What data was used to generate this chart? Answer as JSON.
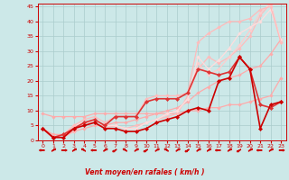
{
  "xlabel": "Vent moyen/en rafales ( km/h )",
  "xlim": [
    -0.5,
    23.5
  ],
  "ylim": [
    0,
    46
  ],
  "xticks": [
    0,
    1,
    2,
    3,
    4,
    5,
    6,
    7,
    8,
    9,
    10,
    11,
    12,
    13,
    14,
    15,
    16,
    17,
    18,
    19,
    20,
    21,
    22,
    23
  ],
  "yticks": [
    0,
    5,
    10,
    15,
    20,
    25,
    30,
    35,
    40,
    45
  ],
  "bg_color": "#cce8e8",
  "grid_color": "#aacccc",
  "series": [
    {
      "x": [
        0,
        1,
        2,
        3,
        4,
        5,
        6,
        7,
        8,
        9,
        10,
        11,
        12,
        13,
        14,
        15,
        16,
        17,
        18,
        19,
        20,
        21,
        22,
        23
      ],
      "y": [
        9,
        8,
        8,
        8,
        8,
        9,
        9,
        9,
        9,
        9,
        9,
        9,
        9,
        9,
        10,
        10,
        11,
        11,
        12,
        12,
        13,
        14,
        15,
        21
      ],
      "color": "#ffaaaa",
      "lw": 0.9,
      "marker": "D",
      "ms": 1.8
    },
    {
      "x": [
        0,
        1,
        2,
        3,
        4,
        5,
        6,
        7,
        8,
        9,
        10,
        11,
        12,
        13,
        14,
        15,
        16,
        17,
        18,
        19,
        20,
        21,
        22,
        23
      ],
      "y": [
        4,
        2,
        2,
        3,
        4,
        5,
        5,
        6,
        6,
        7,
        8,
        9,
        10,
        11,
        13,
        16,
        18,
        20,
        21,
        22,
        24,
        25,
        29,
        34
      ],
      "color": "#ffaaaa",
      "lw": 0.9,
      "marker": "D",
      "ms": 1.8
    },
    {
      "x": [
        0,
        1,
        2,
        3,
        4,
        5,
        6,
        7,
        8,
        9,
        10,
        11,
        12,
        13,
        14,
        15,
        16,
        17,
        18,
        19,
        20,
        21,
        22,
        23
      ],
      "y": [
        4,
        1,
        1,
        3,
        6,
        6,
        4,
        5,
        4,
        5,
        6,
        7,
        8,
        9,
        15,
        24,
        28,
        26,
        28,
        31,
        35,
        42,
        46,
        33
      ],
      "color": "#ffbbbb",
      "lw": 0.9,
      "marker": "D",
      "ms": 1.8
    },
    {
      "x": [
        0,
        1,
        2,
        3,
        4,
        5,
        6,
        7,
        8,
        9,
        10,
        11,
        12,
        13,
        14,
        15,
        16,
        17,
        18,
        19,
        20,
        21,
        22,
        23
      ],
      "y": [
        4,
        1,
        2,
        5,
        6,
        7,
        5,
        5,
        4,
        4,
        6,
        7,
        9,
        10,
        14,
        26,
        22,
        24,
        28,
        32,
        37,
        43,
        46,
        33
      ],
      "color": "#ffcccc",
      "lw": 0.9,
      "marker": "D",
      "ms": 1.8
    },
    {
      "x": [
        0,
        1,
        2,
        3,
        4,
        5,
        6,
        7,
        8,
        9,
        10,
        11,
        12,
        13,
        14,
        15,
        16,
        17,
        18,
        19,
        20,
        21,
        22,
        23
      ],
      "y": [
        4,
        1,
        2,
        5,
        6,
        7,
        5,
        5,
        4,
        4,
        6,
        7,
        9,
        10,
        14,
        28,
        24,
        27,
        31,
        36,
        38,
        40,
        44,
        34
      ],
      "color": "#ffdddd",
      "lw": 0.9,
      "marker": "D",
      "ms": 1.8
    },
    {
      "x": [
        0,
        1,
        2,
        3,
        4,
        5,
        6,
        7,
        8,
        9,
        10,
        11,
        12,
        13,
        14,
        15,
        16,
        17,
        18,
        19,
        20,
        21,
        22,
        23
      ],
      "y": [
        4,
        1,
        2,
        5,
        7,
        8,
        6,
        8,
        8,
        8,
        14,
        15,
        15,
        15,
        16,
        33,
        36,
        38,
        40,
        40,
        41,
        44,
        45,
        33
      ],
      "color": "#ffbbbb",
      "lw": 0.9,
      "marker": "D",
      "ms": 1.8
    },
    {
      "x": [
        0,
        1,
        2,
        3,
        4,
        5,
        6,
        7,
        8,
        9,
        10,
        11,
        12,
        13,
        14,
        15,
        16,
        17,
        18,
        19,
        20,
        21,
        22,
        23
      ],
      "y": [
        4,
        1,
        2,
        4,
        6,
        7,
        5,
        8,
        8,
        8,
        13,
        14,
        14,
        14,
        16,
        24,
        23,
        22,
        23,
        28,
        24,
        12,
        11,
        13
      ],
      "color": "#dd3333",
      "lw": 1.2,
      "marker": "D",
      "ms": 2.2
    },
    {
      "x": [
        0,
        1,
        2,
        3,
        4,
        5,
        6,
        7,
        8,
        9,
        10,
        11,
        12,
        13,
        14,
        15,
        16,
        17,
        18,
        19,
        20,
        21,
        22,
        23
      ],
      "y": [
        4,
        1,
        1,
        4,
        5,
        6,
        4,
        4,
        3,
        3,
        4,
        6,
        7,
        8,
        10,
        11,
        10,
        20,
        21,
        28,
        24,
        4,
        12,
        13
      ],
      "color": "#cc0000",
      "lw": 1.2,
      "marker": "D",
      "ms": 2.2
    }
  ],
  "arrow_angles": [
    270,
    45,
    90,
    45,
    315,
    270,
    45,
    225,
    315,
    45,
    225,
    45,
    315,
    45,
    225,
    45,
    45,
    270,
    45,
    225,
    45,
    270,
    45,
    90
  ]
}
